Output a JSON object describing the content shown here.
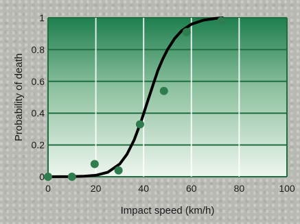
{
  "chart_data": {
    "type": "scatter",
    "title": "",
    "xlabel": "Impact speed (km/h)",
    "ylabel": "Probability of death",
    "xlim": [
      0,
      100
    ],
    "ylim": [
      0,
      1
    ],
    "x_ticks": [
      "0",
      "20",
      "40",
      "60",
      "80",
      "100"
    ],
    "y_ticks": [
      "0",
      "0.2",
      "0.4",
      "0.6",
      "0.8",
      "1"
    ],
    "grid": true,
    "series": [
      {
        "type": "scatter",
        "x": [
          0,
          10,
          19.5,
          29.5,
          38.5,
          48.5,
          58,
          72.5
        ],
        "y": [
          0,
          0,
          0.08,
          0.04,
          0.33,
          0.54,
          0.91,
          0.98
        ]
      },
      {
        "type": "line",
        "x": [
          0,
          10,
          15,
          20,
          25,
          30,
          33,
          36,
          39,
          42,
          44,
          46,
          48,
          50,
          53,
          56,
          60,
          65,
          70,
          73
        ],
        "y": [
          0,
          0.001,
          0.003,
          0.009,
          0.028,
          0.08,
          0.14,
          0.23,
          0.35,
          0.49,
          0.58,
          0.67,
          0.74,
          0.8,
          0.87,
          0.92,
          0.96,
          0.985,
          0.996,
          1.0
        ]
      }
    ],
    "colors": {
      "plot_top": "#1e7f4e",
      "plot_bottom": "#eef6ef",
      "grid": "#1d6e3e",
      "marker": "#2f7d4e",
      "curve": "#000000"
    }
  }
}
